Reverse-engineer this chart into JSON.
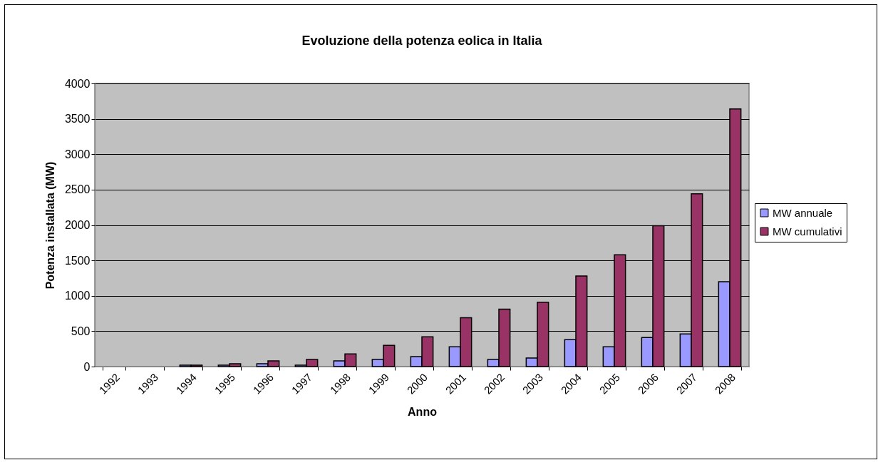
{
  "chart_data": {
    "type": "bar",
    "title": "Evoluzione della potenza eolica in Italia",
    "xlabel": "Anno",
    "ylabel": "Potenza installata (MW)",
    "categories": [
      "1992",
      "1993",
      "1994",
      "1995",
      "1996",
      "1997",
      "1998",
      "1999",
      "2000",
      "2001",
      "2002",
      "2003",
      "2004",
      "2005",
      "2006",
      "2007",
      "2008"
    ],
    "series": [
      {
        "name": "MW annuale",
        "color": "#9999ff",
        "values": [
          null,
          null,
          20,
          20,
          40,
          20,
          80,
          100,
          140,
          280,
          100,
          120,
          380,
          280,
          410,
          460,
          1200
        ]
      },
      {
        "name": "MW cumulativi",
        "color": "#993366",
        "values": [
          null,
          null,
          20,
          40,
          80,
          100,
          180,
          300,
          420,
          690,
          810,
          910,
          1280,
          1580,
          1990,
          2440,
          3640
        ]
      }
    ],
    "ylim": [
      0,
      4000
    ],
    "yticks": [
      0,
      500,
      1000,
      1500,
      2000,
      2500,
      3000,
      3500,
      4000
    ],
    "grid": "y",
    "legend": "right"
  }
}
